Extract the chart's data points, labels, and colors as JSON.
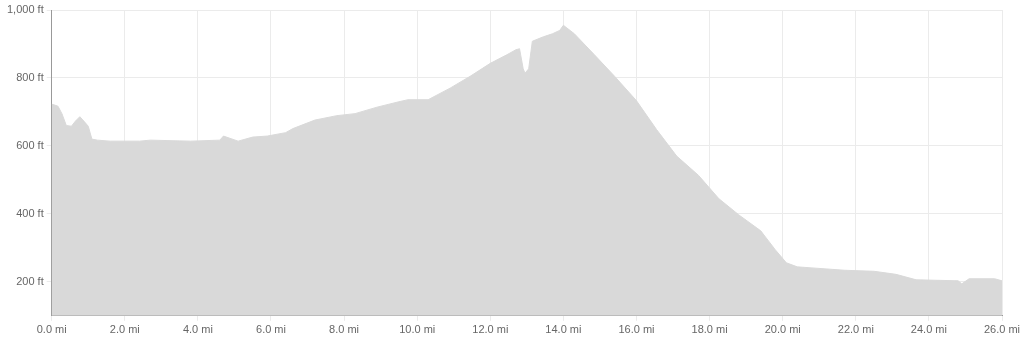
{
  "chart_data": {
    "type": "area",
    "x": [
      0,
      0.17,
      0.28,
      0.4,
      0.54,
      0.65,
      0.77,
      0.88,
      1.0,
      1.1,
      1.25,
      1.6,
      2.4,
      2.7,
      3.8,
      4.6,
      4.7,
      5.1,
      5.5,
      5.9,
      6.4,
      6.6,
      7.2,
      7.8,
      8.3,
      8.9,
      9.5,
      9.75,
      10.3,
      10.9,
      11.45,
      12.0,
      12.45,
      12.7,
      12.8,
      12.9,
      12.95,
      13.05,
      13.15,
      13.45,
      13.7,
      13.9,
      14.0,
      14.3,
      14.85,
      15.4,
      16.0,
      16.55,
      17.1,
      17.7,
      18.25,
      18.8,
      19.4,
      19.8,
      20.1,
      20.4,
      20.8,
      21.7,
      22.5,
      23.1,
      23.65,
      24.8,
      24.9,
      25.1,
      25.8,
      26.0
    ],
    "values": [
      723,
      717,
      695,
      660,
      658,
      673,
      686,
      673,
      658,
      620,
      617,
      614,
      614,
      617,
      614,
      617,
      629,
      614,
      626,
      629,
      639,
      651,
      676,
      689,
      695,
      714,
      730,
      736,
      736,
      770,
      805,
      843,
      868,
      883,
      886,
      827,
      814,
      827,
      908,
      921,
      930,
      940,
      955,
      930,
      868,
      805,
      733,
      648,
      570,
      513,
      445,
      397,
      350,
      294,
      256,
      244,
      241,
      234,
      231,
      222,
      206,
      203,
      194,
      209,
      209,
      203
    ],
    "color": "#d9d9d9",
    "xlim": [
      0,
      26
    ],
    "xticks": [
      {
        "value": 0,
        "label": "0.0 mi"
      },
      {
        "value": 2,
        "label": "2.0 mi"
      },
      {
        "value": 4,
        "label": "4.0 mi"
      },
      {
        "value": 6,
        "label": "6.0 mi"
      },
      {
        "value": 8,
        "label": "8.0 mi"
      },
      {
        "value": 10,
        "label": "10.0 mi"
      },
      {
        "value": 12,
        "label": "12.0 mi"
      },
      {
        "value": 14,
        "label": "14.0 mi"
      },
      {
        "value": 16,
        "label": "16.0 mi"
      },
      {
        "value": 18,
        "label": "18.0 mi"
      },
      {
        "value": 20,
        "label": "20.0 mi"
      },
      {
        "value": 22,
        "label": "22.0 mi"
      },
      {
        "value": 24,
        "label": "24.0 mi"
      },
      {
        "value": 26,
        "label": "26.0 mi"
      }
    ],
    "ylim": [
      100,
      1000
    ],
    "yticks": [
      {
        "value": 200,
        "label": "200 ft"
      },
      {
        "value": 400,
        "label": "400 ft"
      },
      {
        "value": 600,
        "label": "600 ft"
      },
      {
        "value": 800,
        "label": "800 ft"
      },
      {
        "value": 1000,
        "label": "1,000 ft"
      }
    ],
    "grid": true,
    "marker": "none"
  }
}
